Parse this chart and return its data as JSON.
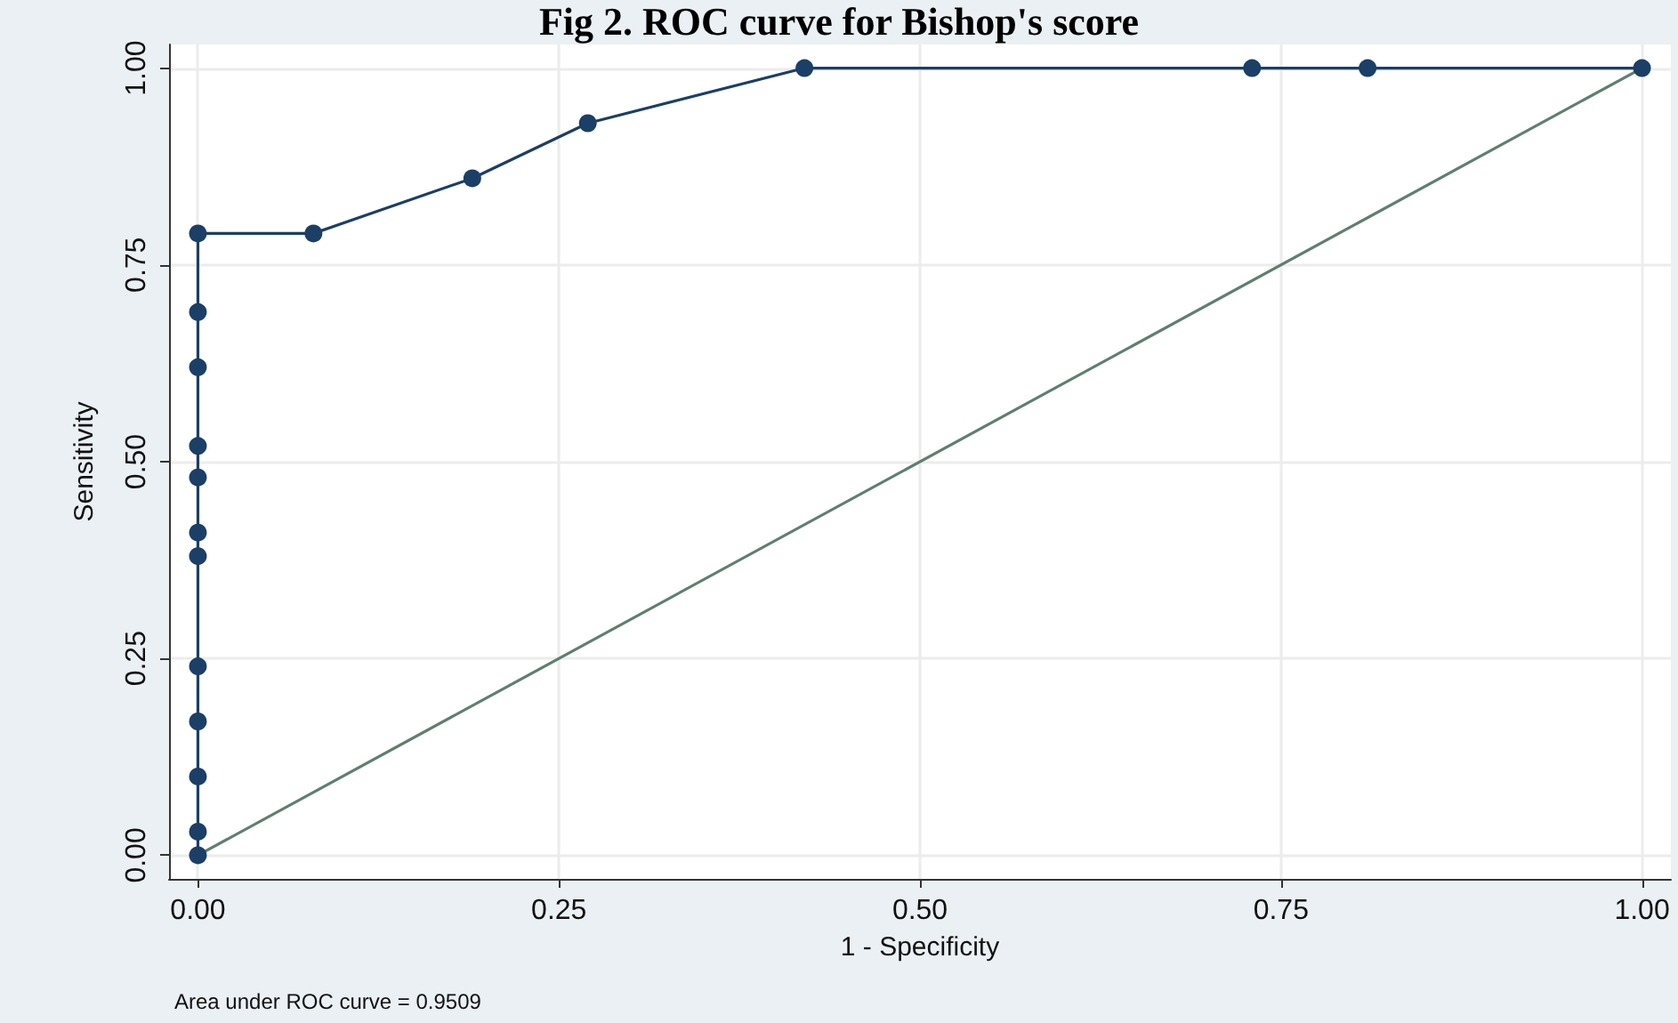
{
  "chart_data": {
    "type": "line",
    "title": "Fig 2. ROC curve for Bishop's score",
    "xlabel": "1 - Specificity",
    "ylabel": "Sensitivity",
    "annotations": [
      "Area under ROC curve = 0.9509"
    ],
    "series": [
      {
        "color": "#1b3f66",
        "marker": "circle",
        "x": [
          0,
          0,
          0,
          0,
          0,
          0,
          0,
          0,
          0,
          0,
          0,
          0,
          0.08,
          0.19,
          0.27,
          0.42,
          0.73,
          0.81,
          1
        ],
        "values": [
          0,
          0.03,
          0.1,
          0.17,
          0.24,
          0.38,
          0.41,
          0.48,
          0.52,
          0.62,
          0.69,
          0.79,
          0.79,
          0.86,
          0.93,
          1,
          1,
          1,
          1
        ]
      },
      {
        "color": "#5f7f6f",
        "marker": "none",
        "x": [
          0,
          1
        ],
        "values": [
          0,
          1
        ]
      }
    ],
    "xlim": [
      -0.02,
      1.02
    ],
    "ylim": [
      -0.03,
      1.03
    ],
    "xticks": [
      {
        "value": 0,
        "label": "0.00"
      },
      {
        "value": 0.25,
        "label": "0.25"
      },
      {
        "value": 0.5,
        "label": "0.50"
      },
      {
        "value": 0.75,
        "label": "0.75"
      },
      {
        "value": 1,
        "label": "1.00"
      }
    ],
    "yticks": [
      {
        "value": 0,
        "label": "0.00"
      },
      {
        "value": 0.25,
        "label": "0.25"
      },
      {
        "value": 0.5,
        "label": "0.50"
      },
      {
        "value": 0.75,
        "label": "0.75"
      },
      {
        "value": 1,
        "label": "1.00"
      }
    ],
    "grid": true,
    "line_style": "solid"
  }
}
